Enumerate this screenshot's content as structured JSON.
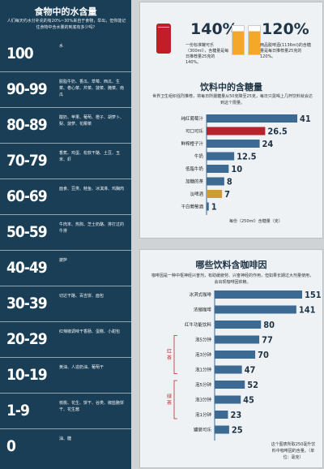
{
  "left": {
    "title": "食物中的水含量",
    "intro": "人们每天约水分补充的有20%~30%来自于食物，举出，但你能记住食物中含水量的到底有多少吗？",
    "rows": [
      {
        "range": "100",
        "foods": "水"
      },
      {
        "range": "90-99",
        "foods": "脱脂牛奶、香瓜、草莓、西瓜、生菜、卷心菜、芹菜、菠菜、腌菜、南瓜"
      },
      {
        "range": "80-89",
        "foods": "酸奶、苹果、葡萄、橙子、胡萝卜、梨、菠萝、花椰菜"
      },
      {
        "range": "70-79",
        "foods": "香蕉、鸡蛋、松软干酪、土豆、玉米、虾"
      },
      {
        "range": "60-69",
        "foods": "面食、豆类、鲑鱼、冰淇淋、鸡胸肉"
      },
      {
        "range": "50-59",
        "foods": "牛肉末、热狗、芝士奶酪、排打过的牛排"
      },
      {
        "range": "40-49",
        "foods": "披萨"
      },
      {
        "range": "30-39",
        "foods": "切达干酪、百吉饼、面包"
      },
      {
        "range": "20-29",
        "foods": "红辣椒调味干香肠、蛋糕、小甜包"
      },
      {
        "range": "10-19",
        "foods": "黄油、人造奶油、葡萄干"
      },
      {
        "range": "1-9",
        "foods": "核桃、花生、饼干、谷类、椒盐脆饼干、花生酱"
      },
      {
        "range": "0",
        "foods": "油、糖"
      }
    ]
  },
  "drinks": {
    "cola_pct": "140%",
    "cola_desc": "一份标准罐可乐（300ml），含糖量是每日推荐量25克的140%。",
    "juice_pct": "120%",
    "juice_desc": "两品脱啤酒(1136ml)的含糖量是每日推荐量25克的120%。"
  },
  "sugar": {
    "title": "饮料中的含糖量",
    "intro": "世界卫生组织强烈推荐，将每日所摄糖量从50克降至25克，每日只需喝上几杯饮料就会达到这个限量。",
    "note": "每份（250ml）含糖量（克）"
  },
  "caffeine": {
    "title": "哪些饮料含咖啡因",
    "intro": "咖啡因是一种中枢神经兴奋剂，有助缓疲劳、兴奋神经的作用，但如果长期过大剂量使用，会出现咖啡因依赖。",
    "note": "这个图表所取250毫升饮料中咖啡因的含量。（单位：毫克）",
    "group_red": "红茶",
    "group_green": "绿茶"
  },
  "chart_data": [
    {
      "type": "bar",
      "title": "饮料中的含糖量",
      "categories": [
        "纯红葡萄汁",
        "可口可乐",
        "鲜榨橙子汁",
        "牛奶",
        "低脂牛奶",
        "加糖的茶",
        "淡啤酒",
        "干白葡萄酒"
      ],
      "values": [
        41,
        26.5,
        24,
        12.5,
        10,
        8,
        7,
        1
      ],
      "xlim": [
        0,
        41
      ],
      "colors": {
        "default": "#3d6a93",
        "highlight_cola": "#b3242e",
        "highlight_beer": "#d09a36"
      }
    },
    {
      "type": "bar",
      "title": "哪些饮料含咖啡因",
      "categories": [
        "冰淇式咖啡",
        "浓缩咖啡",
        "红牛功能饮料",
        "泡5分钟(红茶)",
        "泡3分钟(红茶)",
        "泡1分钟(红茶)",
        "泡5分钟(绿茶)",
        "泡3分钟(绿茶)",
        "泡1分钟(绿茶)",
        "罐装可乐"
      ],
      "display_labels": [
        "冰淇式咖啡",
        "浓缩咖啡",
        "红牛功能饮料",
        "泡5分钟",
        "泡3分钟",
        "泡1分钟",
        "泡5分钟",
        "泡3分钟",
        "泡1分钟",
        "罐装可乐"
      ],
      "values": [
        151,
        141,
        80,
        77,
        70,
        47,
        52,
        45,
        23,
        25
      ],
      "xlim": [
        0,
        151
      ],
      "colors": {
        "default": "#3d6a93"
      }
    }
  ]
}
